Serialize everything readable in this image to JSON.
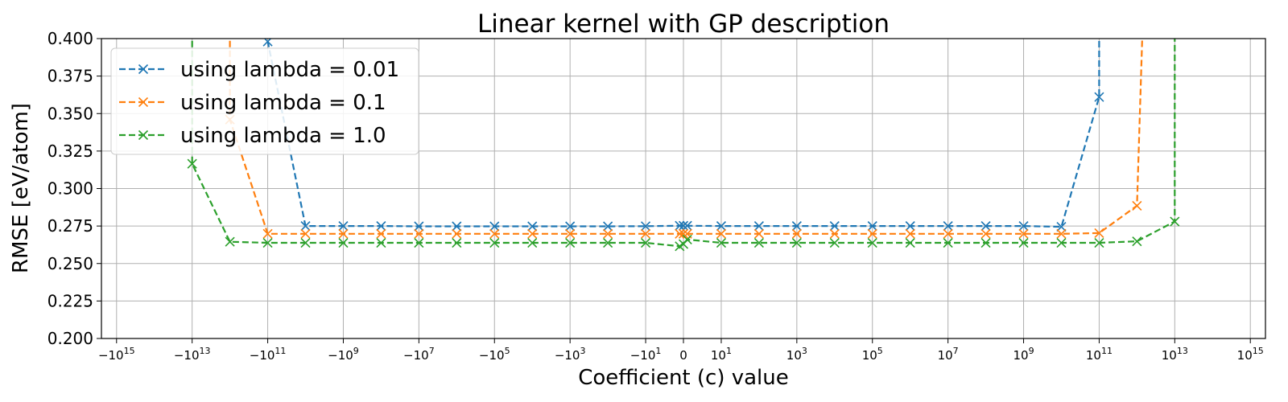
{
  "chart_data": {
    "type": "line",
    "title": "Linear kernel with GP description",
    "xlabel": "Coefficient (c) value",
    "ylabel": "RMSE [eV/atom]",
    "xscale": "symlog",
    "xlim_exponent": [
      -15.4,
      15.4
    ],
    "ylim": [
      0.2,
      0.4
    ],
    "grid": true,
    "legend_position": "upper-left",
    "y_ticks": [
      "0.200",
      "0.225",
      "0.250",
      "0.275",
      "0.300",
      "0.325",
      "0.350",
      "0.375",
      "0.400"
    ],
    "x_ticks": [
      {
        "sign": "−",
        "base": "10",
        "exp": "15",
        "pos": -15
      },
      {
        "sign": "−",
        "base": "10",
        "exp": "13",
        "pos": -13
      },
      {
        "sign": "−",
        "base": "10",
        "exp": "11",
        "pos": -11
      },
      {
        "sign": "−",
        "base": "10",
        "exp": "9",
        "pos": -9
      },
      {
        "sign": "−",
        "base": "10",
        "exp": "7",
        "pos": -7
      },
      {
        "sign": "−",
        "base": "10",
        "exp": "5",
        "pos": -5
      },
      {
        "sign": "−",
        "base": "10",
        "exp": "3",
        "pos": -3
      },
      {
        "sign": "−",
        "base": "10",
        "exp": "1",
        "pos": -1
      },
      {
        "sign": "",
        "base": "0",
        "exp": "",
        "pos": 0
      },
      {
        "sign": "",
        "base": "10",
        "exp": "1",
        "pos": 1
      },
      {
        "sign": "",
        "base": "10",
        "exp": "3",
        "pos": 3
      },
      {
        "sign": "",
        "base": "10",
        "exp": "5",
        "pos": 5
      },
      {
        "sign": "",
        "base": "10",
        "exp": "7",
        "pos": 7
      },
      {
        "sign": "",
        "base": "10",
        "exp": "9",
        "pos": 9
      },
      {
        "sign": "",
        "base": "10",
        "exp": "11",
        "pos": 11
      },
      {
        "sign": "",
        "base": "10",
        "exp": "13",
        "pos": 13
      },
      {
        "sign": "",
        "base": "10",
        "exp": "15",
        "pos": 15
      }
    ],
    "series": [
      {
        "name": "using lambda = 0.01",
        "color": "#1f77b4",
        "points": [
          [
            -11,
            0.398
          ],
          [
            -10,
            0.275
          ],
          [
            -9,
            0.275
          ],
          [
            -8,
            0.275
          ],
          [
            -7,
            0.2748
          ],
          [
            -6,
            0.2748
          ],
          [
            -5,
            0.2748
          ],
          [
            -4,
            0.2748
          ],
          [
            -3,
            0.2748
          ],
          [
            -2,
            0.2748
          ],
          [
            -1,
            0.2749
          ],
          [
            -0.1,
            0.2752
          ],
          [
            0,
            0.2752
          ],
          [
            0.1,
            0.2752
          ],
          [
            1,
            0.275
          ],
          [
            2,
            0.275
          ],
          [
            3,
            0.275
          ],
          [
            4,
            0.275
          ],
          [
            5,
            0.275
          ],
          [
            6,
            0.275
          ],
          [
            7,
            0.275
          ],
          [
            8,
            0.275
          ],
          [
            9,
            0.275
          ],
          [
            10,
            0.2745
          ],
          [
            11,
            0.361
          ]
        ],
        "offscreen_before": [
          -11,
          0.45
        ],
        "offscreen_after": [
          11,
          0.45
        ]
      },
      {
        "name": "using lambda = 0.1",
        "color": "#ff7f0e",
        "points": [
          [
            -12,
            0.346
          ],
          [
            -11,
            0.2698
          ],
          [
            -10,
            0.2698
          ],
          [
            -9,
            0.2698
          ],
          [
            -8,
            0.2698
          ],
          [
            -7,
            0.2698
          ],
          [
            -6,
            0.2698
          ],
          [
            -5,
            0.2698
          ],
          [
            -4,
            0.2698
          ],
          [
            -3,
            0.2698
          ],
          [
            -2,
            0.2698
          ],
          [
            -1,
            0.2698
          ],
          [
            -0.1,
            0.2698
          ],
          [
            0,
            0.2698
          ],
          [
            0.1,
            0.2698
          ],
          [
            1,
            0.2698
          ],
          [
            2,
            0.2698
          ],
          [
            3,
            0.2698
          ],
          [
            4,
            0.2698
          ],
          [
            5,
            0.2698
          ],
          [
            6,
            0.2698
          ],
          [
            7,
            0.2698
          ],
          [
            8,
            0.2698
          ],
          [
            9,
            0.2698
          ],
          [
            10,
            0.2698
          ],
          [
            11,
            0.2703
          ],
          [
            12,
            0.2885
          ]
        ],
        "offscreen_before": [
          -12,
          0.45
        ],
        "offscreen_after": [
          12.2,
          0.45
        ]
      },
      {
        "name": "using lambda = 1.0",
        "color": "#2ca02c",
        "points": [
          [
            -13,
            0.3165
          ],
          [
            -12,
            0.2645
          ],
          [
            -11,
            0.2638
          ],
          [
            -10,
            0.2638
          ],
          [
            -9,
            0.2638
          ],
          [
            -8,
            0.2638
          ],
          [
            -7,
            0.2638
          ],
          [
            -6,
            0.2638
          ],
          [
            -5,
            0.2638
          ],
          [
            -4,
            0.2638
          ],
          [
            -3,
            0.2638
          ],
          [
            -2,
            0.2638
          ],
          [
            -1,
            0.2638
          ],
          [
            -0.1,
            0.2615
          ],
          [
            0,
            0.263
          ],
          [
            0.1,
            0.266
          ],
          [
            1,
            0.2638
          ],
          [
            2,
            0.2638
          ],
          [
            3,
            0.2638
          ],
          [
            4,
            0.2638
          ],
          [
            5,
            0.2638
          ],
          [
            6,
            0.2638
          ],
          [
            7,
            0.2638
          ],
          [
            8,
            0.2638
          ],
          [
            9,
            0.2638
          ],
          [
            10,
            0.2638
          ],
          [
            11,
            0.2638
          ],
          [
            12,
            0.2648
          ],
          [
            13,
            0.278
          ]
        ],
        "offscreen_before": [
          -13,
          0.45
        ],
        "offscreen_after": [
          13,
          0.45
        ]
      }
    ]
  }
}
